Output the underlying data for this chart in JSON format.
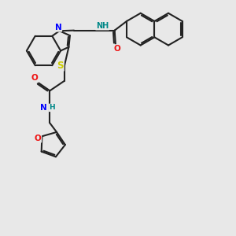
{
  "bg_color": "#e8e8e8",
  "bond_color": "#222222",
  "bond_lw": 1.5,
  "dbl_sep": 0.06,
  "N_color": "#0000ff",
  "O_color": "#ee1111",
  "S_color": "#cccc00",
  "NH_color": "#008888",
  "figsize": [
    3.0,
    3.0
  ],
  "dpi": 100,
  "xlim": [
    0,
    10
  ],
  "ylim": [
    0,
    10
  ]
}
